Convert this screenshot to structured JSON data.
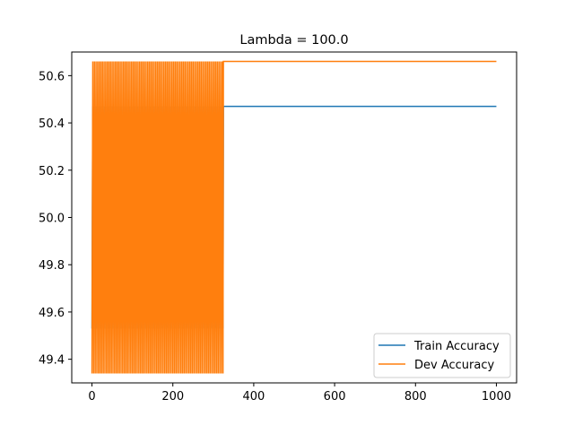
{
  "chart_data": {
    "type": "line",
    "title": "Lambda = 100.0",
    "xlabel": "",
    "ylabel": "",
    "xlim": [
      -50,
      1050
    ],
    "ylim": [
      49.3,
      50.7
    ],
    "xticks": [
      0,
      200,
      400,
      600,
      800,
      1000
    ],
    "yticks": [
      49.4,
      49.6,
      49.8,
      50.0,
      50.2,
      50.4,
      50.6
    ],
    "ytick_labels": [
      "49.4",
      "49.6",
      "49.8",
      "50.0",
      "50.2",
      "50.4",
      "50.6"
    ],
    "grid": false,
    "legend_position": "lower-right",
    "oscillation_end_x": 325,
    "series": [
      {
        "name": "Train Accuracy",
        "color": "#1f77b4",
        "pattern": "oscillating until x=325, then constant",
        "low": 49.53,
        "high": 50.47,
        "final": 50.47,
        "x_start": 0,
        "x_end": 1000
      },
      {
        "name": "Dev Accuracy",
        "color": "#ff7f0e",
        "pattern": "oscillating until x=325, then constant",
        "low": 49.34,
        "high": 50.66,
        "final": 50.66,
        "x_start": 0,
        "x_end": 1000
      }
    ]
  }
}
